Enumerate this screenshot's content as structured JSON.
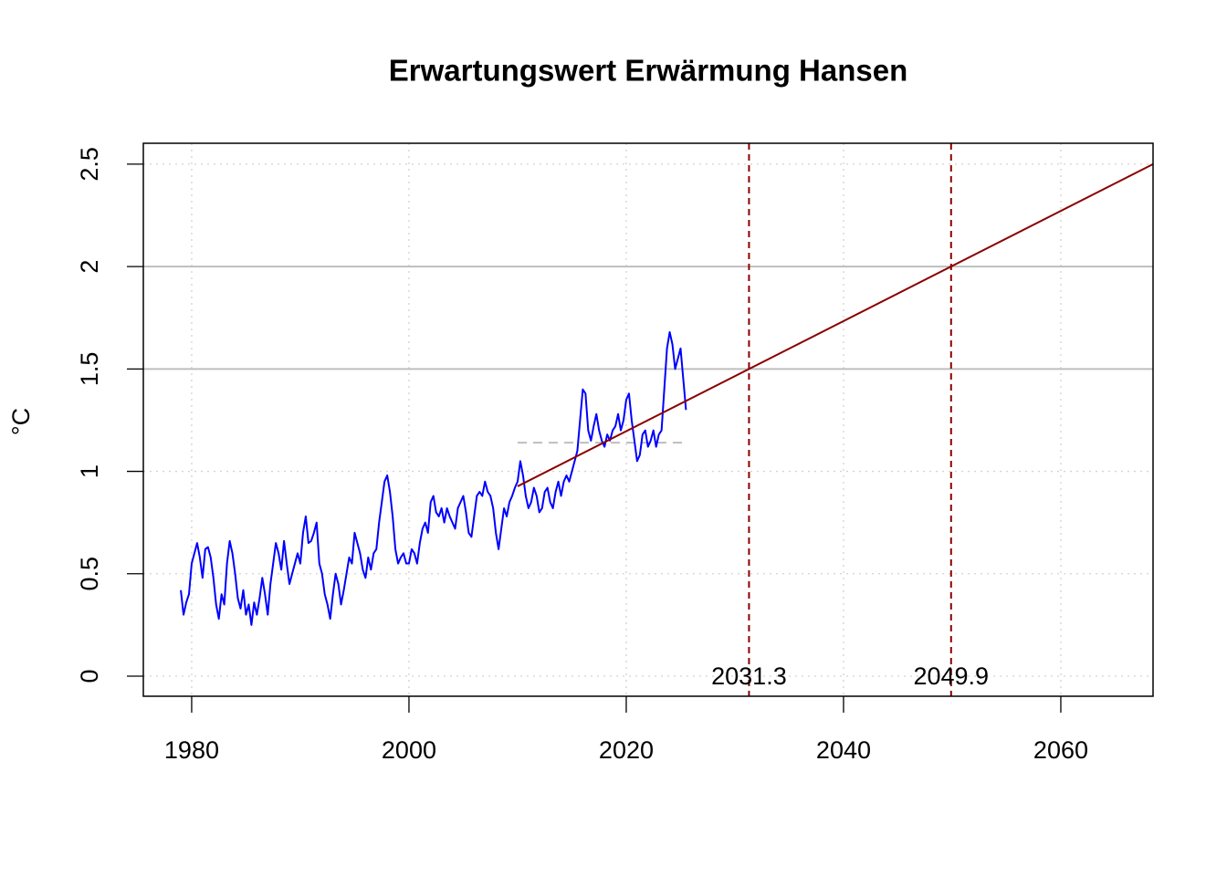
{
  "chart_data": {
    "type": "line",
    "title": "Erwartungswert Erwärmung Hansen",
    "ylabel": "°C",
    "xlim": [
      1975.55,
      2068.49
    ],
    "ylim": [
      -0.098,
      2.602
    ],
    "xticks": [
      1980,
      2000,
      2020,
      2040,
      2060
    ],
    "yticks": [
      0.0,
      0.5,
      1.0,
      1.5,
      2.0,
      2.5
    ],
    "grid": true,
    "reference_lines": [
      1.5,
      2.0
    ],
    "x": [
      1979,
      1979.25,
      1979.5,
      1979.75,
      1980,
      1980.25,
      1980.5,
      1980.75,
      1981,
      1981.25,
      1981.5,
      1981.75,
      1982,
      1982.25,
      1982.5,
      1982.75,
      1983,
      1983.25,
      1983.5,
      1983.75,
      1984,
      1984.25,
      1984.5,
      1984.75,
      1985,
      1985.25,
      1985.5,
      1985.75,
      1986,
      1986.25,
      1986.5,
      1986.75,
      1987,
      1987.25,
      1987.5,
      1987.75,
      1988,
      1988.25,
      1988.5,
      1988.75,
      1989,
      1989.25,
      1989.5,
      1989.75,
      1990,
      1990.25,
      1990.5,
      1990.75,
      1991,
      1991.25,
      1991.5,
      1991.75,
      1992,
      1992.25,
      1992.5,
      1992.75,
      1993,
      1993.25,
      1993.5,
      1993.75,
      1994,
      1994.25,
      1994.5,
      1994.75,
      1995,
      1995.25,
      1995.5,
      1995.75,
      1996,
      1996.25,
      1996.5,
      1996.75,
      1997,
      1997.25,
      1997.5,
      1997.75,
      1998,
      1998.25,
      1998.5,
      1998.75,
      1999,
      1999.25,
      1999.5,
      1999.75,
      2000,
      2000.25,
      2000.5,
      2000.75,
      2001,
      2001.25,
      2001.5,
      2001.75,
      2002,
      2002.25,
      2002.5,
      2002.75,
      2003,
      2003.25,
      2003.5,
      2003.75,
      2004,
      2004.25,
      2004.5,
      2004.75,
      2005,
      2005.25,
      2005.5,
      2005.75,
      2006,
      2006.25,
      2006.5,
      2006.75,
      2007,
      2007.25,
      2007.5,
      2007.75,
      2008,
      2008.25,
      2008.5,
      2008.75,
      2009,
      2009.25,
      2009.5,
      2009.75,
      2010,
      2010.25,
      2010.5,
      2010.75,
      2011,
      2011.25,
      2011.5,
      2011.75,
      2012,
      2012.25,
      2012.5,
      2012.75,
      2013,
      2013.25,
      2013.5,
      2013.75,
      2014,
      2014.25,
      2014.5,
      2014.75,
      2015,
      2015.25,
      2015.5,
      2015.75,
      2016,
      2016.25,
      2016.5,
      2016.75,
      2017,
      2017.25,
      2017.5,
      2017.75,
      2018,
      2018.25,
      2018.5,
      2018.75,
      2019,
      2019.25,
      2019.5,
      2019.75,
      2020,
      2020.25,
      2020.5,
      2020.75,
      2021,
      2021.25,
      2021.5,
      2021.75,
      2022,
      2022.25,
      2022.5,
      2022.75,
      2023,
      2023.25,
      2023.5,
      2023.75,
      2024,
      2024.25,
      2024.5,
      2024.75,
      2025,
      2025.25,
      2025.5
    ],
    "series": [
      {
        "color": "#0000ff",
        "values": [
          0.42,
          0.3,
          0.36,
          0.4,
          0.55,
          0.6,
          0.65,
          0.58,
          0.48,
          0.62,
          0.63,
          0.58,
          0.48,
          0.35,
          0.28,
          0.4,
          0.35,
          0.55,
          0.66,
          0.6,
          0.5,
          0.38,
          0.33,
          0.42,
          0.3,
          0.35,
          0.25,
          0.36,
          0.3,
          0.38,
          0.48,
          0.4,
          0.3,
          0.45,
          0.55,
          0.65,
          0.6,
          0.52,
          0.66,
          0.55,
          0.45,
          0.5,
          0.55,
          0.6,
          0.55,
          0.7,
          0.78,
          0.65,
          0.66,
          0.7,
          0.75,
          0.55,
          0.5,
          0.4,
          0.35,
          0.28,
          0.4,
          0.5,
          0.45,
          0.35,
          0.42,
          0.5,
          0.58,
          0.55,
          0.7,
          0.65,
          0.6,
          0.52,
          0.48,
          0.58,
          0.52,
          0.6,
          0.62,
          0.75,
          0.85,
          0.95,
          0.98,
          0.9,
          0.78,
          0.62,
          0.55,
          0.58,
          0.6,
          0.55,
          0.55,
          0.62,
          0.6,
          0.55,
          0.65,
          0.72,
          0.75,
          0.7,
          0.85,
          0.88,
          0.8,
          0.78,
          0.82,
          0.75,
          0.82,
          0.78,
          0.75,
          0.72,
          0.82,
          0.85,
          0.88,
          0.8,
          0.7,
          0.68,
          0.78,
          0.88,
          0.9,
          0.88,
          0.95,
          0.9,
          0.88,
          0.82,
          0.7,
          0.62,
          0.72,
          0.82,
          0.78,
          0.85,
          0.88,
          0.92,
          0.95,
          1.05,
          0.98,
          0.88,
          0.82,
          0.85,
          0.92,
          0.88,
          0.8,
          0.82,
          0.9,
          0.92,
          0.85,
          0.82,
          0.9,
          0.95,
          0.88,
          0.95,
          0.98,
          0.95,
          1.0,
          1.05,
          1.1,
          1.25,
          1.4,
          1.38,
          1.2,
          1.15,
          1.22,
          1.28,
          1.2,
          1.15,
          1.12,
          1.18,
          1.15,
          1.2,
          1.22,
          1.28,
          1.2,
          1.25,
          1.35,
          1.38,
          1.25,
          1.15,
          1.05,
          1.08,
          1.18,
          1.2,
          1.12,
          1.15,
          1.2,
          1.12,
          1.18,
          1.2,
          1.4,
          1.6,
          1.68,
          1.62,
          1.5,
          1.55,
          1.6,
          1.45,
          1.3
        ]
      }
    ],
    "trend": {
      "x": [
        2010,
        2068.49
      ],
      "values": [
        0.927,
        2.5
      ],
      "color": "#8b0000"
    },
    "baseline": {
      "x": [
        2010,
        2025.6
      ],
      "values": [
        1.14,
        1.14
      ],
      "color": "#bebebe"
    },
    "markers": {
      "values": [
        2031.3,
        2049.9
      ],
      "color": "#8b0000"
    }
  }
}
